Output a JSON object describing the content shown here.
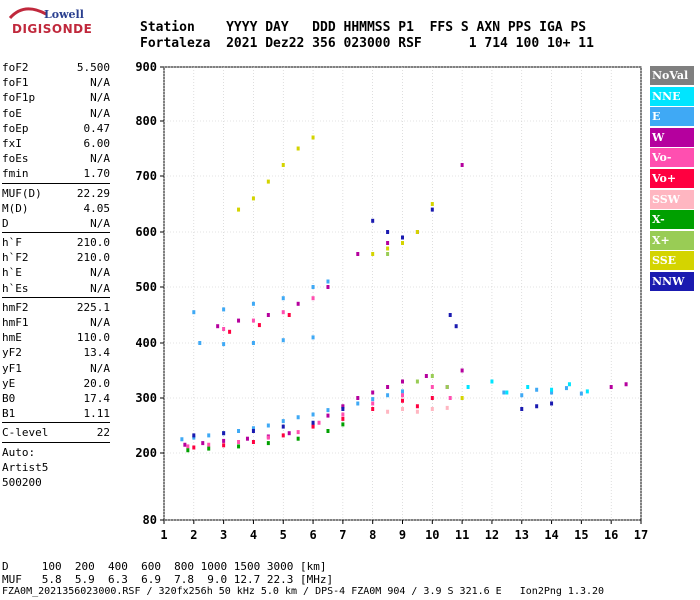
{
  "logo": {
    "line1": "Lowell",
    "line2": "DIGISONDE"
  },
  "header": {
    "labels": "Station    YYYY DAY   DDD HHMMSS P1  FFS S AXN PPS IGA PS",
    "values": "Fortaleza  2021 Dez22 356 023000 RSF      1 714 100 10+ 11"
  },
  "params": {
    "group1": [
      {
        "k": "foF2",
        "v": "5.500"
      },
      {
        "k": "foF1",
        "v": "N/A"
      },
      {
        "k": "foF1p",
        "v": "N/A"
      },
      {
        "k": "foE",
        "v": "N/A"
      },
      {
        "k": "foEp",
        "v": "0.47"
      },
      {
        "k": "fxI",
        "v": "6.00"
      },
      {
        "k": "foEs",
        "v": "N/A"
      },
      {
        "k": "fmin",
        "v": "1.70"
      }
    ],
    "group2": [
      {
        "k": "MUF(D)",
        "v": "22.29"
      },
      {
        "k": "M(D)",
        "v": "4.05"
      },
      {
        "k": "D",
        "v": "N/A"
      }
    ],
    "group3": [
      {
        "k": "h`F",
        "v": "210.0"
      },
      {
        "k": "h`F2",
        "v": "210.0"
      },
      {
        "k": "h`E",
        "v": "N/A"
      },
      {
        "k": "h`Es",
        "v": "N/A"
      }
    ],
    "group4": [
      {
        "k": "hmF2",
        "v": "225.1"
      },
      {
        "k": "hmF1",
        "v": "N/A"
      },
      {
        "k": "hmE",
        "v": "110.0"
      },
      {
        "k": "yF2",
        "v": "13.4"
      },
      {
        "k": "yF1",
        "v": "N/A"
      },
      {
        "k": "yE",
        "v": "20.0"
      },
      {
        "k": "B0",
        "v": "17.4"
      },
      {
        "k": "B1",
        "v": "1.11"
      }
    ],
    "group5": [
      {
        "k": "C-level",
        "v": "22"
      }
    ],
    "autoscaling": {
      "line1": "Auto:",
      "line2": "Artist5",
      "line3": "500200"
    }
  },
  "legend": [
    {
      "label": "NoVal",
      "color": "#7f7f7f"
    },
    {
      "label": "NNE",
      "color": "#00e5ff"
    },
    {
      "label": "E",
      "color": "#3fa9f5"
    },
    {
      "label": "W",
      "color": "#b5009e"
    },
    {
      "label": "Vo-",
      "color": "#ff4fb0"
    },
    {
      "label": "Vo+",
      "color": "#ff0040"
    },
    {
      "label": "SSW",
      "color": "#ffb6c1"
    },
    {
      "label": "X-",
      "color": "#00a000"
    },
    {
      "label": "X+",
      "color": "#99cc55"
    },
    {
      "label": "SSE",
      "color": "#d4d400"
    },
    {
      "label": "NNW",
      "color": "#1a1ab0"
    }
  ],
  "chart_data": {
    "type": "scatter",
    "xlim": [
      1,
      17
    ],
    "ylim": [
      80,
      900
    ],
    "x_ticks": [
      1,
      2,
      3,
      4,
      5,
      6,
      7,
      8,
      9,
      10,
      11,
      12,
      13,
      14,
      15,
      16,
      17
    ],
    "y_ticks": [
      80,
      200,
      300,
      400,
      500,
      600,
      700,
      800,
      900
    ],
    "grid": true,
    "legend_position": "right",
    "series": [
      {
        "name": "E",
        "color": "#3fa9f5",
        "points": [
          [
            1.6,
            225
          ],
          [
            2,
            228
          ],
          [
            2.5,
            232
          ],
          [
            3,
            236
          ],
          [
            3.5,
            240
          ],
          [
            4,
            245
          ],
          [
            4.5,
            250
          ],
          [
            5,
            258
          ],
          [
            5.5,
            265
          ],
          [
            6,
            270
          ],
          [
            6.5,
            278
          ],
          [
            7,
            284
          ],
          [
            7.5,
            290
          ],
          [
            8,
            298
          ],
          [
            8.5,
            305
          ],
          [
            9,
            312
          ],
          [
            12.4,
            310
          ],
          [
            13,
            305
          ],
          [
            13.5,
            315
          ],
          [
            14,
            310
          ],
          [
            14.5,
            318
          ],
          [
            15,
            308
          ],
          [
            2.2,
            400
          ],
          [
            3,
            398
          ],
          [
            4,
            400
          ],
          [
            5,
            405
          ],
          [
            6,
            410
          ],
          [
            2,
            455
          ],
          [
            3,
            460
          ],
          [
            4,
            470
          ],
          [
            5,
            480
          ],
          [
            6,
            500
          ],
          [
            6.5,
            510
          ]
        ]
      },
      {
        "name": "W",
        "color": "#b5009e",
        "points": [
          [
            1.7,
            215
          ],
          [
            2.3,
            218
          ],
          [
            3,
            222
          ],
          [
            3.8,
            226
          ],
          [
            4.5,
            230
          ],
          [
            5.2,
            236
          ],
          [
            6,
            250
          ],
          [
            6.5,
            268
          ],
          [
            7,
            285
          ],
          [
            7.5,
            300
          ],
          [
            8,
            310
          ],
          [
            8.5,
            320
          ],
          [
            9,
            330
          ],
          [
            9.8,
            340
          ],
          [
            10.5,
            320
          ],
          [
            11,
            350
          ],
          [
            11,
            720
          ],
          [
            16,
            320
          ],
          [
            16.5,
            325
          ],
          [
            2.8,
            430
          ],
          [
            3.5,
            440
          ],
          [
            4.5,
            450
          ],
          [
            5.5,
            470
          ],
          [
            6.5,
            500
          ],
          [
            7.5,
            560
          ],
          [
            8.5,
            580
          ],
          [
            9.5,
            600
          ]
        ]
      },
      {
        "name": "Vo-",
        "color": "#ff4fb0",
        "points": [
          [
            1.8,
            212
          ],
          [
            2.5,
            215
          ],
          [
            3.5,
            220
          ],
          [
            4.5,
            228
          ],
          [
            5.5,
            238
          ],
          [
            6.2,
            255
          ],
          [
            7,
            270
          ],
          [
            8,
            290
          ],
          [
            9,
            305
          ],
          [
            10,
            320
          ],
          [
            10.6,
            300
          ],
          [
            3,
            425
          ],
          [
            4,
            440
          ],
          [
            5,
            455
          ],
          [
            6,
            480
          ]
        ]
      },
      {
        "name": "Vo+",
        "color": "#ff0040",
        "points": [
          [
            2,
            210
          ],
          [
            3,
            214
          ],
          [
            4,
            220
          ],
          [
            5,
            232
          ],
          [
            6,
            248
          ],
          [
            7,
            262
          ],
          [
            8,
            280
          ],
          [
            9,
            295
          ],
          [
            9.5,
            285
          ],
          [
            10,
            300
          ],
          [
            3.2,
            420
          ],
          [
            4.2,
            432
          ],
          [
            5.2,
            450
          ]
        ]
      },
      {
        "name": "SSW",
        "color": "#ffb6c1",
        "points": [
          [
            8.5,
            275
          ],
          [
            9,
            280
          ],
          [
            9.5,
            275
          ],
          [
            10,
            280
          ],
          [
            10.5,
            282
          ]
        ]
      },
      {
        "name": "X-",
        "color": "#00a000",
        "points": [
          [
            1.8,
            205
          ],
          [
            2.5,
            208
          ],
          [
            3.5,
            212
          ],
          [
            4.5,
            218
          ],
          [
            5.5,
            226
          ],
          [
            6.5,
            240
          ],
          [
            7,
            252
          ]
        ]
      },
      {
        "name": "X+",
        "color": "#99cc55",
        "points": [
          [
            9.5,
            330
          ],
          [
            10,
            340
          ],
          [
            10.5,
            320
          ],
          [
            8.5,
            560
          ],
          [
            9,
            580
          ]
        ]
      },
      {
        "name": "SSE",
        "color": "#d4d400",
        "points": [
          [
            3.5,
            640
          ],
          [
            4,
            660
          ],
          [
            4.5,
            690
          ],
          [
            5,
            720
          ],
          [
            5.5,
            750
          ],
          [
            6,
            770
          ],
          [
            8,
            560
          ],
          [
            8.5,
            570
          ],
          [
            9,
            580
          ],
          [
            9.5,
            600
          ],
          [
            10,
            650
          ],
          [
            11,
            300
          ]
        ]
      },
      {
        "name": "NNW",
        "color": "#1a1ab0",
        "points": [
          [
            2,
            232
          ],
          [
            3,
            236
          ],
          [
            4,
            240
          ],
          [
            5,
            248
          ],
          [
            6,
            255
          ],
          [
            7,
            280
          ],
          [
            8,
            620
          ],
          [
            8.5,
            600
          ],
          [
            9,
            590
          ],
          [
            10,
            640
          ],
          [
            10.6,
            450
          ],
          [
            10.8,
            430
          ],
          [
            13,
            280
          ],
          [
            13.5,
            285
          ],
          [
            14,
            290
          ]
        ]
      },
      {
        "name": "NNE",
        "color": "#00e5ff",
        "points": [
          [
            11.2,
            320
          ],
          [
            12,
            330
          ],
          [
            12.5,
            310
          ],
          [
            13.2,
            320
          ],
          [
            14,
            315
          ],
          [
            14.6,
            325
          ],
          [
            15.2,
            312
          ]
        ]
      }
    ]
  },
  "d_muf": {
    "d_line": "D     100  200  400  600  800 1000 1500 3000 [km]",
    "muf_line": "MUF   5.8  5.9  6.3  6.9  7.8  9.0 12.7 22.3 [MHz]"
  },
  "footer": "FZA0M_2021356023000.RSF / 320fx256h 50 kHz 5.0 km / DPS-4 FZA0M 904 / 3.9 S 321.6 E   Ion2Png 1.3.20"
}
